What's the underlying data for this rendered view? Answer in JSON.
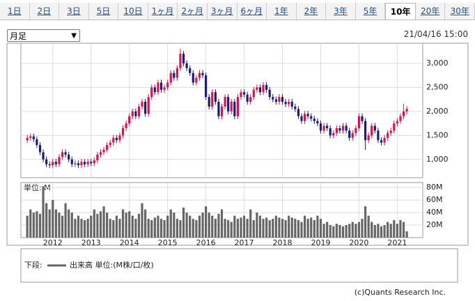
{
  "tabs": [
    "1日",
    "2日",
    "3日",
    "5日",
    "10日",
    "1ヶ月",
    "2ヶ月",
    "3ヶ月",
    "6ヶ月",
    "1年",
    "2年",
    "3年",
    "5年",
    "10年",
    "20年",
    "30年"
  ],
  "selected_tab_index": 13,
  "select": {
    "label": "月足"
  },
  "timestamp": "21/04/16 15:00",
  "chart_data": {
    "type": "candlestick",
    "up_color": "#e0104c",
    "down_color": "#1c1c7a",
    "ylim": [
      620,
      3420
    ],
    "yticks": [
      {
        "value": 1000,
        "label": "1,000"
      },
      {
        "value": 1500,
        "label": "1,500"
      },
      {
        "value": 2000,
        "label": "2,000"
      },
      {
        "value": 2500,
        "label": "2,500"
      },
      {
        "value": 3000,
        "label": "3,000"
      }
    ],
    "xticks": [
      {
        "value": 8,
        "label": "2012"
      },
      {
        "value": 20,
        "label": "2013"
      },
      {
        "value": 32,
        "label": "2014"
      },
      {
        "value": 44,
        "label": "2015"
      },
      {
        "value": 56,
        "label": "2016"
      },
      {
        "value": 68,
        "label": "2017"
      },
      {
        "value": 80,
        "label": "2018"
      },
      {
        "value": 92,
        "label": "2019"
      },
      {
        "value": 104,
        "label": "2020"
      },
      {
        "value": 116,
        "label": "2021"
      }
    ],
    "xlim": [
      -2,
      124
    ],
    "ohlc": [
      [
        1400,
        1510,
        1340,
        1450
      ],
      [
        1450,
        1540,
        1390,
        1480
      ],
      [
        1480,
        1540,
        1360,
        1420
      ],
      [
        1420,
        1480,
        1240,
        1300
      ],
      [
        1300,
        1360,
        1090,
        1150
      ],
      [
        1150,
        1210,
        940,
        1000
      ],
      [
        1000,
        1060,
        840,
        900
      ],
      [
        900,
        960,
        820,
        880
      ],
      [
        880,
        1010,
        820,
        950
      ],
      [
        950,
        1010,
        840,
        900
      ],
      [
        900,
        1110,
        840,
        1050
      ],
      [
        1050,
        1210,
        990,
        1150
      ],
      [
        1150,
        1210,
        1040,
        1100
      ],
      [
        1100,
        1160,
        940,
        1000
      ],
      [
        1000,
        1060,
        840,
        900
      ],
      [
        900,
        980,
        840,
        920
      ],
      [
        920,
        980,
        820,
        880
      ],
      [
        880,
        1010,
        820,
        950
      ],
      [
        950,
        1010,
        840,
        900
      ],
      [
        900,
        1010,
        840,
        950
      ],
      [
        950,
        1010,
        860,
        920
      ],
      [
        920,
        1040,
        860,
        980
      ],
      [
        980,
        1160,
        920,
        1100
      ],
      [
        1100,
        1210,
        1040,
        1150
      ],
      [
        1150,
        1260,
        1090,
        1200
      ],
      [
        1200,
        1360,
        1140,
        1300
      ],
      [
        1300,
        1410,
        1240,
        1350
      ],
      [
        1350,
        1510,
        1290,
        1450
      ],
      [
        1450,
        1510,
        1340,
        1400
      ],
      [
        1400,
        1560,
        1340,
        1500
      ],
      [
        1500,
        1710,
        1440,
        1650
      ],
      [
        1650,
        1810,
        1590,
        1750
      ],
      [
        1750,
        1960,
        1690,
        1900
      ],
      [
        1900,
        2060,
        1840,
        2000
      ],
      [
        2000,
        2060,
        1840,
        1900
      ],
      [
        1900,
        2160,
        1840,
        2100
      ],
      [
        2100,
        2260,
        2040,
        2200
      ],
      [
        2200,
        2260,
        1890,
        1950
      ],
      [
        1950,
        2360,
        1890,
        2300
      ],
      [
        2300,
        2560,
        2240,
        2500
      ],
      [
        2500,
        2560,
        2340,
        2400
      ],
      [
        2400,
        2660,
        2340,
        2600
      ],
      [
        2600,
        2660,
        2390,
        2450
      ],
      [
        2450,
        2560,
        2390,
        2500
      ],
      [
        2500,
        2660,
        2440,
        2600
      ],
      [
        2600,
        2860,
        2540,
        2800
      ],
      [
        2800,
        2860,
        2640,
        2700
      ],
      [
        2700,
        2960,
        2640,
        2900
      ],
      [
        2900,
        3300,
        2840,
        3200
      ],
      [
        3200,
        3260,
        2940,
        3000
      ],
      [
        3000,
        3060,
        2840,
        2900
      ],
      [
        2900,
        2960,
        2740,
        2800
      ],
      [
        2800,
        2860,
        2540,
        2600
      ],
      [
        2600,
        2760,
        2540,
        2700
      ],
      [
        2700,
        2860,
        2640,
        2800
      ],
      [
        2800,
        2860,
        2690,
        2750
      ],
      [
        2750,
        2810,
        2240,
        2300
      ],
      [
        2300,
        2360,
        2040,
        2100
      ],
      [
        2100,
        2460,
        2040,
        2400
      ],
      [
        2400,
        2460,
        2140,
        2200
      ],
      [
        2200,
        2260,
        1840,
        1900
      ],
      [
        1900,
        2160,
        1840,
        2100
      ],
      [
        2100,
        2360,
        2040,
        2300
      ],
      [
        2300,
        2360,
        1940,
        2000
      ],
      [
        2000,
        2260,
        1940,
        2200
      ],
      [
        2200,
        2260,
        1840,
        1900
      ],
      [
        1900,
        2360,
        1840,
        2300
      ],
      [
        2300,
        2460,
        2240,
        2400
      ],
      [
        2400,
        2460,
        2290,
        2350
      ],
      [
        2350,
        2410,
        2140,
        2200
      ],
      [
        2200,
        2360,
        2140,
        2300
      ],
      [
        2300,
        2510,
        2240,
        2450
      ],
      [
        2450,
        2560,
        2390,
        2500
      ],
      [
        2500,
        2560,
        2340,
        2400
      ],
      [
        2400,
        2610,
        2340,
        2550
      ],
      [
        2550,
        2610,
        2390,
        2450
      ],
      [
        2450,
        2510,
        2240,
        2300
      ],
      [
        2300,
        2360,
        2190,
        2250
      ],
      [
        2250,
        2310,
        2140,
        2200
      ],
      [
        2200,
        2360,
        2140,
        2300
      ],
      [
        2300,
        2360,
        2140,
        2200
      ],
      [
        2200,
        2260,
        2090,
        2150
      ],
      [
        2150,
        2260,
        2090,
        2200
      ],
      [
        2200,
        2260,
        2040,
        2100
      ],
      [
        2100,
        2160,
        1990,
        2050
      ],
      [
        2050,
        2110,
        1840,
        1900
      ],
      [
        1900,
        1960,
        1740,
        1800
      ],
      [
        1800,
        2010,
        1740,
        1950
      ],
      [
        1950,
        2010,
        1840,
        1900
      ],
      [
        1900,
        1960,
        1790,
        1850
      ],
      [
        1850,
        1910,
        1740,
        1800
      ],
      [
        1800,
        1860,
        1690,
        1750
      ],
      [
        1750,
        1810,
        1540,
        1600
      ],
      [
        1600,
        1760,
        1540,
        1700
      ],
      [
        1700,
        1760,
        1590,
        1650
      ],
      [
        1650,
        1710,
        1440,
        1500
      ],
      [
        1500,
        1610,
        1440,
        1550
      ],
      [
        1550,
        1710,
        1490,
        1650
      ],
      [
        1650,
        1710,
        1540,
        1600
      ],
      [
        1600,
        1760,
        1540,
        1700
      ],
      [
        1700,
        1760,
        1540,
        1600
      ],
      [
        1600,
        1660,
        1390,
        1450
      ],
      [
        1450,
        1610,
        1390,
        1550
      ],
      [
        1550,
        1710,
        1490,
        1650
      ],
      [
        1650,
        1960,
        1590,
        1900
      ],
      [
        1900,
        1960,
        1740,
        1800
      ],
      [
        1800,
        1860,
        1200,
        1400
      ],
      [
        1400,
        1560,
        1340,
        1500
      ],
      [
        1500,
        1760,
        1440,
        1700
      ],
      [
        1700,
        1760,
        1540,
        1600
      ],
      [
        1600,
        1660,
        1340,
        1400
      ],
      [
        1400,
        1460,
        1290,
        1350
      ],
      [
        1350,
        1510,
        1290,
        1450
      ],
      [
        1450,
        1610,
        1390,
        1550
      ],
      [
        1550,
        1660,
        1490,
        1600
      ],
      [
        1600,
        1810,
        1540,
        1750
      ],
      [
        1750,
        1860,
        1690,
        1800
      ],
      [
        1800,
        1960,
        1740,
        1900
      ],
      [
        1900,
        2160,
        1840,
        2000
      ],
      [
        2000,
        2110,
        1940,
        2050
      ]
    ],
    "volume": {
      "unit_label": "単位: M",
      "color": "#666666",
      "ylim": [
        0,
        88
      ],
      "yticks": [
        {
          "value": 20,
          "label": "20M"
        },
        {
          "value": 40,
          "label": "40M"
        },
        {
          "value": 60,
          "label": "60M"
        },
        {
          "value": 80,
          "label": "80M"
        }
      ],
      "values": [
        35,
        45,
        40,
        42,
        38,
        82,
        55,
        45,
        60,
        45,
        40,
        35,
        55,
        45,
        40,
        30,
        35,
        30,
        28,
        30,
        35,
        45,
        38,
        42,
        50,
        40,
        30,
        28,
        35,
        30,
        45,
        40,
        42,
        35,
        30,
        38,
        55,
        45,
        30,
        28,
        32,
        35,
        30,
        28,
        35,
        45,
        40,
        30,
        28,
        48,
        40,
        35,
        30,
        28,
        35,
        40,
        50,
        40,
        35,
        30,
        38,
        45,
        30,
        28,
        25,
        35,
        30,
        32,
        35,
        30,
        45,
        28,
        40,
        35,
        30,
        32,
        28,
        30,
        35,
        32,
        30,
        28,
        35,
        32,
        30,
        28,
        25,
        35,
        30,
        32,
        28,
        35,
        30,
        22,
        25,
        20,
        18,
        22,
        20,
        18,
        20,
        22,
        25,
        22,
        25,
        30,
        50,
        35,
        25,
        20,
        22,
        18,
        20,
        25,
        22,
        28,
        22,
        28,
        25,
        10
      ]
    }
  },
  "legend": {
    "prefix": "下段:",
    "label": "出来高 単位:(M株/口/枚)"
  },
  "footer": "(c)Quants Research Inc."
}
